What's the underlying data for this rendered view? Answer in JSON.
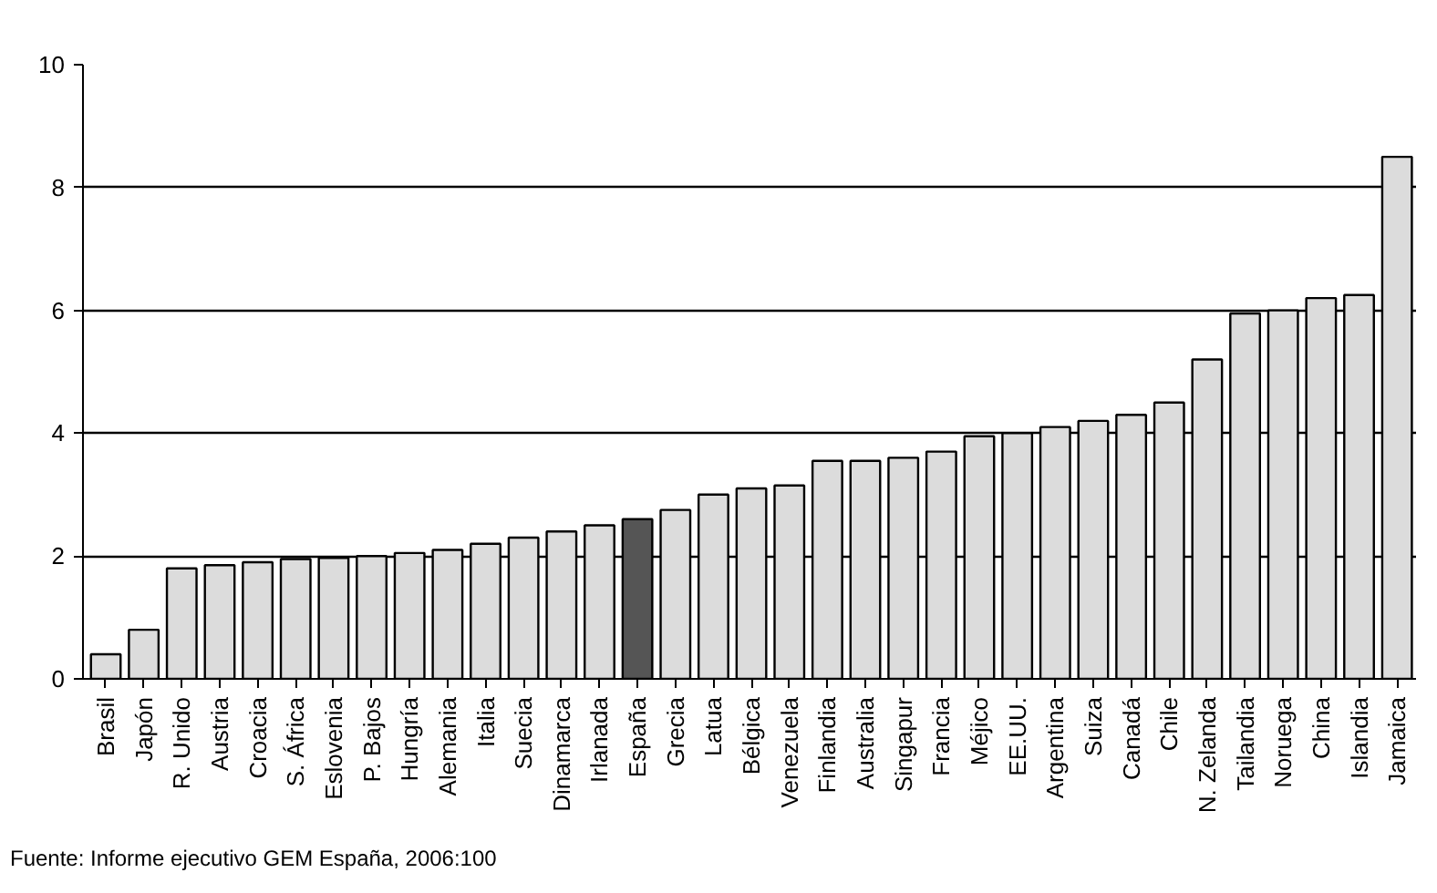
{
  "chart_data": {
    "type": "bar",
    "categories": [
      "Brasil",
      "Japón",
      "R. Unido",
      "Austria",
      "Croacia",
      "S. África",
      "Eslovenia",
      "P. Bajos",
      "Hungría",
      "Alemania",
      "Italia",
      "Suecia",
      "Dinamarca",
      "Irlanada",
      "España",
      "Grecia",
      "Latua",
      "Bélgica",
      "Venezuela",
      "Finlandia",
      "Australia",
      "Singapur",
      "Francia",
      "Méjico",
      "EE.UU.",
      "Argentina",
      "Suiza",
      "Canadá",
      "Chile",
      "N. Zelanda",
      "Tailandia",
      "Noruega",
      "China",
      "Islandia",
      "Jamaica"
    ],
    "values": [
      0.4,
      0.8,
      1.8,
      1.85,
      1.9,
      1.95,
      1.97,
      2.0,
      2.05,
      2.1,
      2.2,
      2.3,
      2.4,
      2.5,
      2.6,
      2.75,
      3.0,
      3.1,
      3.15,
      3.55,
      3.55,
      3.6,
      3.7,
      3.95,
      4.0,
      4.1,
      4.2,
      4.3,
      4.5,
      5.2,
      5.95,
      6.0,
      6.2,
      6.25,
      8.5
    ],
    "colors": [
      "#dcdcdc",
      "#dcdcdc",
      "#dcdcdc",
      "#dcdcdc",
      "#dcdcdc",
      "#dcdcdc",
      "#dcdcdc",
      "#dcdcdc",
      "#dcdcdc",
      "#dcdcdc",
      "#dcdcdc",
      "#dcdcdc",
      "#dcdcdc",
      "#dcdcdc",
      "#555555",
      "#dcdcdc",
      "#dcdcdc",
      "#dcdcdc",
      "#dcdcdc",
      "#dcdcdc",
      "#dcdcdc",
      "#dcdcdc",
      "#dcdcdc",
      "#dcdcdc",
      "#dcdcdc",
      "#dcdcdc",
      "#dcdcdc",
      "#dcdcdc",
      "#dcdcdc",
      "#dcdcdc",
      "#dcdcdc",
      "#dcdcdc",
      "#dcdcdc",
      "#dcdcdc",
      "#dcdcdc"
    ],
    "ylim": [
      0,
      10
    ],
    "yticks": [
      0,
      2,
      4,
      6,
      8,
      10
    ],
    "grid": "y",
    "annotations": [
      "Fuente: Informe ejecutivo GEM España, 2006:100"
    ]
  }
}
